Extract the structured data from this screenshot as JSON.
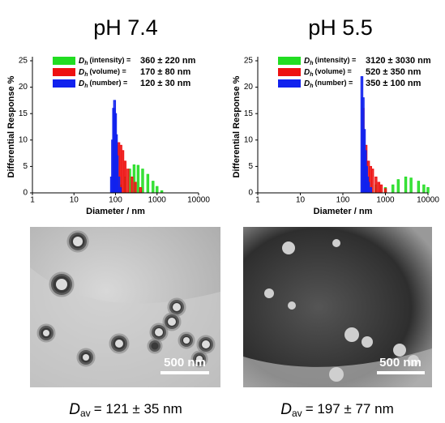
{
  "chart_data": [
    {
      "type": "histogram",
      "title": "pH 7.4",
      "xlabel": "Diameter / nm",
      "ylabel": "Differential Response %",
      "log_x": true,
      "xlim": [
        1,
        10000
      ],
      "xticks": [
        1,
        10,
        100,
        1000,
        10000
      ],
      "ylim": [
        0,
        25
      ],
      "yticks": [
        0,
        5,
        10,
        15,
        20,
        25
      ],
      "legend_symbol": "D",
      "legend_subscript": "h",
      "series": [
        {
          "name": "(intensity) =",
          "label": "360 ± 220 nm",
          "color": "#22dd22",
          "x": [
            100,
            130,
            170,
            220,
            280,
            350,
            450,
            600,
            800,
            1000,
            1300
          ],
          "values": [
            0.5,
            1.5,
            3,
            4.5,
            5.3,
            5.2,
            4.5,
            3.5,
            2.2,
            1.2,
            0.4
          ]
        },
        {
          "name": "(volume) =",
          "label": "170 ± 80 nm",
          "color": "#ee1111",
          "x": [
            90,
            100,
            110,
            120,
            135,
            150,
            170,
            200,
            250,
            300,
            400
          ],
          "values": [
            3,
            7,
            9,
            9.5,
            9,
            8,
            6,
            4.5,
            3,
            2,
            1
          ]
        },
        {
          "name": "(number) =",
          "label": "120 ± 30 nm",
          "color": "#1122ee",
          "x": [
            80,
            85,
            90,
            95,
            100,
            105,
            110,
            120,
            130
          ],
          "values": [
            3,
            10,
            16,
            17.5,
            15,
            11,
            7,
            3,
            1
          ]
        }
      ]
    },
    {
      "type": "histogram",
      "title": "pH 5.5",
      "xlabel": "Diameter / nm",
      "ylabel": "Differential Response %",
      "log_x": true,
      "xlim": [
        1,
        10000
      ],
      "xticks": [
        1,
        10,
        100,
        1000,
        10000
      ],
      "ylim": [
        0,
        25
      ],
      "yticks": [
        0,
        5,
        10,
        15,
        20,
        25
      ],
      "legend_symbol": "D",
      "legend_subscript": "h",
      "series": [
        {
          "name": "(intensity) =",
          "label": "3120 ± 3030 nm",
          "color": "#22dd22",
          "x": [
            300,
            400,
            600,
            1000,
            1500,
            2000,
            3000,
            4000,
            6000,
            8000,
            10000
          ],
          "values": [
            3,
            2.5,
            1.5,
            1,
            1.5,
            2.5,
            3,
            2.8,
            2.2,
            1.5,
            1
          ]
        },
        {
          "name": "(volume) =",
          "label": "520 ± 350 nm",
          "color": "#ee1111",
          "x": [
            300,
            350,
            400,
            450,
            500,
            600,
            700,
            800,
            1000
          ],
          "values": [
            16,
            9,
            6,
            5,
            4.5,
            3,
            2,
            1.5,
            0.8
          ]
        },
        {
          "name": "(number) =",
          "label": "350 ± 100 nm",
          "color": "#1122ee",
          "x": [
            280,
            300,
            320,
            340,
            360,
            380,
            400,
            450
          ],
          "values": [
            22,
            18,
            12,
            8,
            5,
            3,
            2,
            1
          ]
        }
      ]
    }
  ],
  "images": [
    {
      "scale_bar": "500 nm",
      "caption_symbol": "D",
      "caption_subscript": "av",
      "caption_value": "= 121 ± 35 nm"
    },
    {
      "scale_bar": "500 nm",
      "caption_symbol": "D",
      "caption_subscript": "av",
      "caption_value": "= 197 ± 77 nm"
    }
  ]
}
